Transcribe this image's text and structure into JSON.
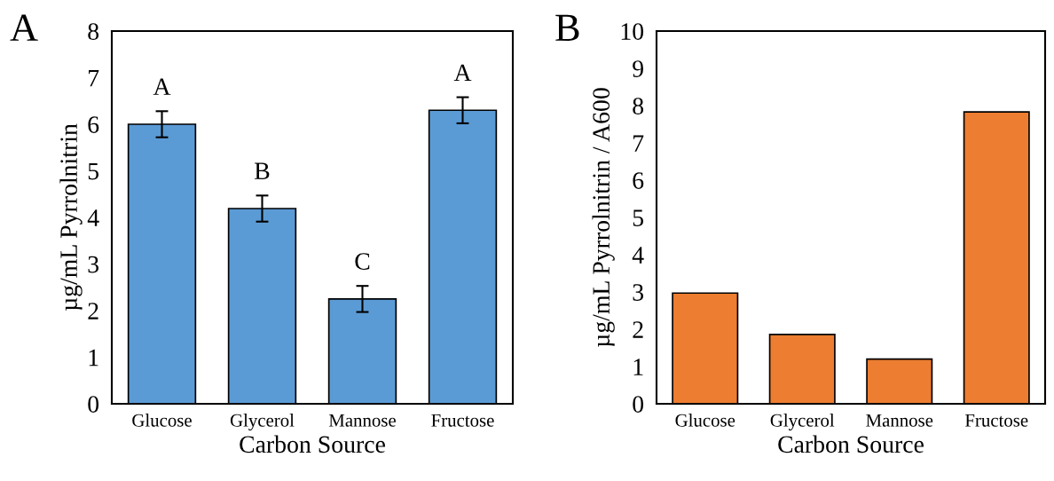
{
  "chart_data": [
    {
      "type": "bar",
      "annotations": [
        "A",
        "A",
        "B",
        "C",
        "A"
      ],
      "xlabel": "Carbon Source",
      "ylabel": "µg/mL Pyrrolnitrin",
      "categories": [
        "Glucose",
        "Glycerol",
        "Mannose",
        "Fructose"
      ],
      "values": [
        6.0,
        4.19,
        2.25,
        6.3
      ],
      "errors": [
        0.28,
        0.28,
        0.28,
        0.28
      ],
      "color": "#5b9bd5",
      "ylim": [
        0,
        8
      ],
      "yticks": [
        0,
        1,
        2,
        3,
        4,
        5,
        6,
        7,
        8
      ],
      "grid": false
    },
    {
      "type": "bar",
      "annotations": [
        "B"
      ],
      "xlabel": "Carbon Source",
      "ylabel": "µg/mL Pyrrolnitrin / A600",
      "categories": [
        "Glucose",
        "Glycerol",
        "Mannose",
        "Fructose"
      ],
      "values": [
        2.97,
        1.86,
        1.2,
        7.83
      ],
      "color": "#ed7d31",
      "ylim": [
        0,
        10
      ],
      "yticks": [
        0,
        1,
        2,
        3,
        4,
        5,
        6,
        7,
        8,
        9,
        10
      ],
      "grid": false
    }
  ]
}
